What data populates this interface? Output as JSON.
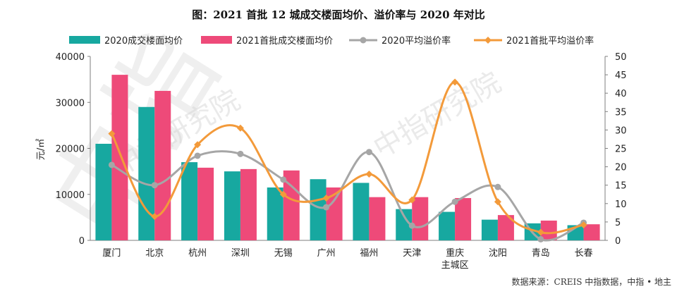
{
  "chart_data": {
    "type": "bar",
    "title": "图：2021 首批 12 城成交楼面均价、溢价率与 2020 年对比",
    "ylabel": "元/㎡",
    "ylim": [
      0,
      40000
    ],
    "y2lim": [
      0,
      50
    ],
    "y_ticks": [
      "0",
      "10000",
      "20000",
      "30000",
      "40000"
    ],
    "y2_ticks": [
      "0",
      "5",
      "10",
      "15",
      "20",
      "25",
      "30",
      "35",
      "40",
      "45",
      "50"
    ],
    "categories": [
      "厦门",
      "北京",
      "杭州",
      "深圳",
      "无锡",
      "广州",
      "福州",
      "天津",
      "重庆\n主城区",
      "沈阳",
      "青岛",
      "长春"
    ],
    "series": [
      {
        "name": "2020成交楼面均价",
        "kind": "bar",
        "axis": "left",
        "color": "#17a8a0",
        "values": [
          21000,
          29000,
          17000,
          15000,
          11500,
          13300,
          12500,
          6800,
          6200,
          4500,
          3700,
          3300
        ]
      },
      {
        "name": "2021首批成交楼面均价",
        "kind": "bar",
        "axis": "left",
        "color": "#ee4a79",
        "values": [
          36000,
          32500,
          15800,
          15500,
          15200,
          11500,
          9400,
          9400,
          9200,
          5500,
          4300,
          3500
        ]
      },
      {
        "name": "2020平均溢价率",
        "kind": "line",
        "axis": "right",
        "color": "#a6a6a6",
        "values": [
          20.5,
          15.0,
          23.0,
          23.5,
          16.5,
          9.0,
          24.0,
          4.0,
          10.5,
          14.5,
          0.3,
          4.8
        ]
      },
      {
        "name": "2021首批平均溢价率",
        "kind": "line",
        "axis": "right",
        "color": "#f39a3a",
        "values": [
          29.0,
          6.5,
          26.0,
          30.5,
          12.5,
          11.5,
          18.0,
          11.0,
          43.0,
          10.5,
          2.2,
          4.2
        ]
      }
    ],
    "legend_position": "top",
    "grid": false,
    "source": "数据来源：CREIS 中指数据，中指 • 地主",
    "watermark": "中指研究院"
  }
}
